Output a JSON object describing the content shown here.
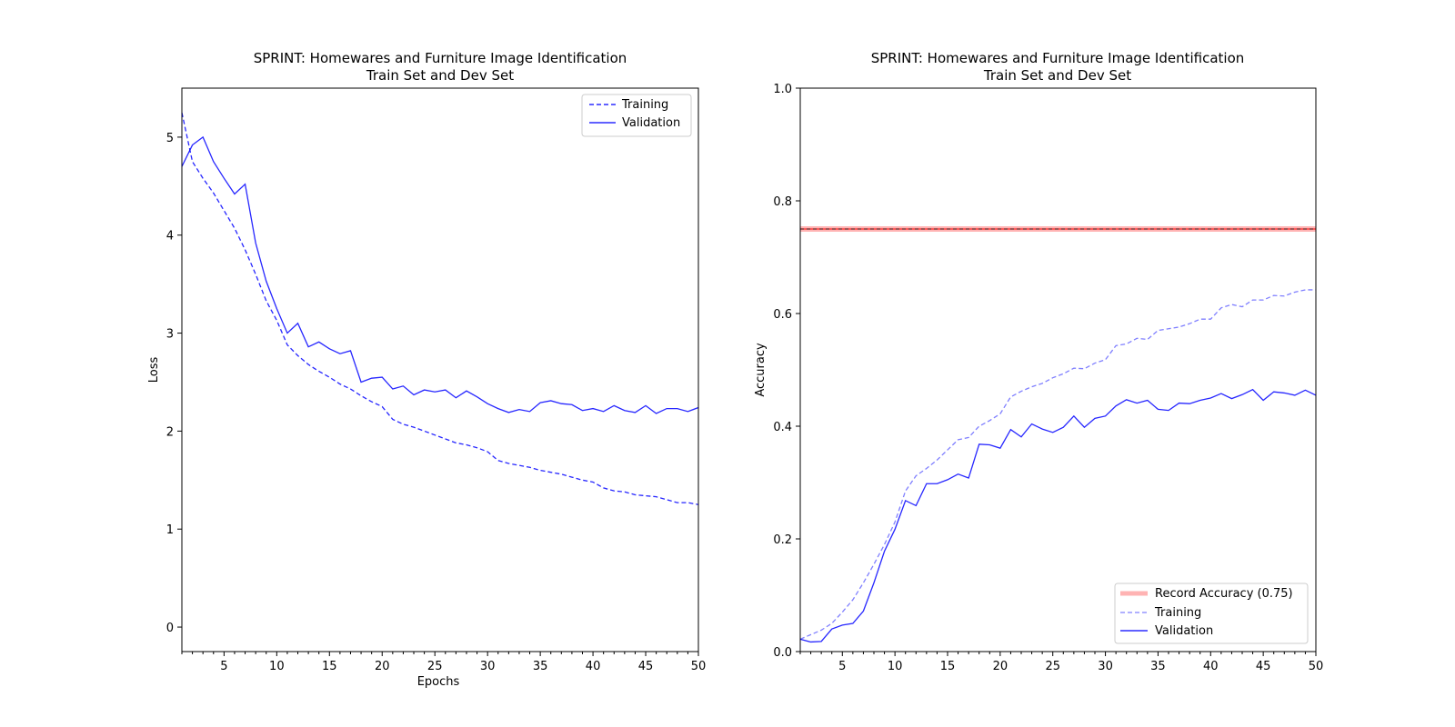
{
  "colors": {
    "series": "#0000ff",
    "record_line": "#ff0000",
    "record_band": "#ffb3b3",
    "record_dash": "#000000"
  },
  "chart_data": [
    {
      "type": "line",
      "title": "SPRINT: Homewares and Furniture Image Identification",
      "subtitle": "Train Set and Dev Set",
      "xlabel": "Epochs",
      "ylabel": "Loss",
      "xlim": [
        1,
        50
      ],
      "ylim": [
        -0.25,
        5.5
      ],
      "xticks": [
        5,
        10,
        15,
        20,
        25,
        30,
        35,
        40,
        45,
        50
      ],
      "yticks": [
        0,
        1,
        2,
        3,
        4,
        5
      ],
      "grid": false,
      "legend": {
        "placement": "top-right",
        "entries": [
          "Training",
          "Validation"
        ]
      },
      "x": [
        1,
        2,
        3,
        4,
        5,
        6,
        7,
        8,
        9,
        10,
        11,
        12,
        13,
        14,
        15,
        16,
        17,
        18,
        19,
        20,
        21,
        22,
        23,
        24,
        25,
        26,
        27,
        28,
        29,
        30,
        31,
        32,
        33,
        34,
        35,
        36,
        37,
        38,
        39,
        40,
        41,
        42,
        43,
        44,
        45,
        46,
        47,
        48,
        49,
        50
      ],
      "series": [
        {
          "name": "Training",
          "style": "dashed",
          "values": [
            5.25,
            4.75,
            4.58,
            4.43,
            4.25,
            4.07,
            3.85,
            3.6,
            3.33,
            3.13,
            2.88,
            2.77,
            2.68,
            2.61,
            2.55,
            2.48,
            2.43,
            2.36,
            2.3,
            2.25,
            2.12,
            2.07,
            2.04,
            2.0,
            1.96,
            1.92,
            1.88,
            1.86,
            1.83,
            1.79,
            1.7,
            1.67,
            1.65,
            1.63,
            1.6,
            1.58,
            1.56,
            1.53,
            1.5,
            1.48,
            1.42,
            1.39,
            1.38,
            1.35,
            1.34,
            1.33,
            1.3,
            1.27,
            1.27,
            1.25
          ]
        },
        {
          "name": "Validation",
          "style": "solid",
          "values": [
            4.7,
            4.92,
            5.0,
            4.75,
            4.58,
            4.42,
            4.52,
            3.92,
            3.53,
            3.25,
            3.0,
            3.1,
            2.86,
            2.91,
            2.84,
            2.79,
            2.82,
            2.5,
            2.54,
            2.55,
            2.43,
            2.46,
            2.37,
            2.42,
            2.4,
            2.42,
            2.34,
            2.41,
            2.35,
            2.28,
            2.23,
            2.19,
            2.22,
            2.2,
            2.29,
            2.31,
            2.28,
            2.27,
            2.21,
            2.23,
            2.2,
            2.26,
            2.21,
            2.19,
            2.26,
            2.18,
            2.23,
            2.23,
            2.2,
            2.24
          ]
        }
      ]
    },
    {
      "type": "line",
      "title": "SPRINT: Homewares and Furniture Image Identification",
      "subtitle": "Train Set and Dev Set",
      "xlabel": "",
      "ylabel": "Accuracy",
      "xlim": [
        1,
        50
      ],
      "ylim": [
        0.0,
        1.0
      ],
      "xticks": [
        5,
        10,
        15,
        20,
        25,
        30,
        35,
        40,
        45,
        50
      ],
      "yticks": [
        0.0,
        0.2,
        0.4,
        0.6,
        0.8,
        1.0
      ],
      "ytick_labels": [
        "0.0",
        "0.2",
        "0.4",
        "0.6",
        "0.8",
        "1.0"
      ],
      "grid": false,
      "legend": {
        "placement": "bottom-right",
        "entries": [
          "Record Accuracy (0.75)",
          "Training",
          "Validation"
        ]
      },
      "reference_line": {
        "name": "Record Accuracy (0.75)",
        "value": 0.75
      },
      "x": [
        1,
        2,
        3,
        4,
        5,
        6,
        7,
        8,
        9,
        10,
        11,
        12,
        13,
        14,
        15,
        16,
        17,
        18,
        19,
        20,
        21,
        22,
        23,
        24,
        25,
        26,
        27,
        28,
        29,
        30,
        31,
        32,
        33,
        34,
        35,
        36,
        37,
        38,
        39,
        40,
        41,
        42,
        43,
        44,
        45,
        46,
        47,
        48,
        49,
        50
      ],
      "series": [
        {
          "name": "Training",
          "style": "dashed",
          "values": [
            0.022,
            0.03,
            0.038,
            0.05,
            0.07,
            0.092,
            0.122,
            0.155,
            0.19,
            0.23,
            0.285,
            0.312,
            0.325,
            0.34,
            0.358,
            0.376,
            0.38,
            0.4,
            0.41,
            0.422,
            0.452,
            0.462,
            0.47,
            0.476,
            0.486,
            0.493,
            0.503,
            0.502,
            0.512,
            0.518,
            0.543,
            0.546,
            0.556,
            0.554,
            0.57,
            0.573,
            0.576,
            0.582,
            0.59,
            0.59,
            0.61,
            0.616,
            0.612,
            0.624,
            0.624,
            0.632,
            0.631,
            0.638,
            0.642,
            0.642
          ]
        },
        {
          "name": "Validation",
          "style": "solid",
          "values": [
            0.022,
            0.017,
            0.018,
            0.04,
            0.047,
            0.05,
            0.072,
            0.122,
            0.178,
            0.217,
            0.268,
            0.259,
            0.298,
            0.298,
            0.305,
            0.315,
            0.308,
            0.368,
            0.367,
            0.361,
            0.394,
            0.381,
            0.404,
            0.395,
            0.389,
            0.398,
            0.418,
            0.398,
            0.414,
            0.418,
            0.436,
            0.447,
            0.441,
            0.446,
            0.43,
            0.428,
            0.441,
            0.44,
            0.446,
            0.45,
            0.458,
            0.449,
            0.456,
            0.465,
            0.446,
            0.461,
            0.459,
            0.455,
            0.464,
            0.455
          ]
        }
      ]
    }
  ]
}
